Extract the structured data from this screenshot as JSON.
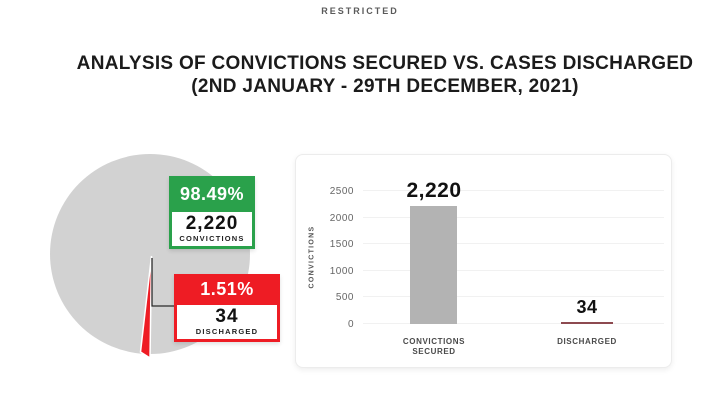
{
  "page": {
    "classification_banner": "RESTRICTED",
    "title_line1": "ANALYSIS OF CONVICTIONS SECURED VS. CASES DISCHARGED",
    "title_line2": "(2ND JANUARY - 29TH DECEMBER, 2021)",
    "background_color": "#ffffff"
  },
  "chart_data": [
    {
      "type": "pie",
      "labels": [
        "CONVICTIONS",
        "DISCHARGED"
      ],
      "values": [
        2220,
        34
      ],
      "percents": [
        98.49,
        1.51
      ],
      "slice_colors": [
        "#d2d2d2",
        "#ee1c24"
      ],
      "callouts": [
        {
          "percent": "98.49%",
          "value": "2,220",
          "label": "CONVICTIONS",
          "accent_color": "#2aa14b"
        },
        {
          "percent": "1.51%",
          "value": "34",
          "label": "DISCHARGED",
          "accent_color": "#ee1c24"
        }
      ]
    },
    {
      "type": "bar",
      "categories": [
        "CONVICTIONS SECURED",
        "DISCHARGED"
      ],
      "values": [
        2220,
        34
      ],
      "value_labels": [
        "2,220",
        "34"
      ],
      "bar_colors": [
        "#b3b3b3",
        "#8d4a50"
      ],
      "ylabel": "CONVICTIONS",
      "yticks": [
        0,
        500,
        1000,
        1500,
        2000,
        2500
      ],
      "ylim": [
        0,
        2500
      ],
      "grid": true,
      "legend": "none"
    }
  ]
}
